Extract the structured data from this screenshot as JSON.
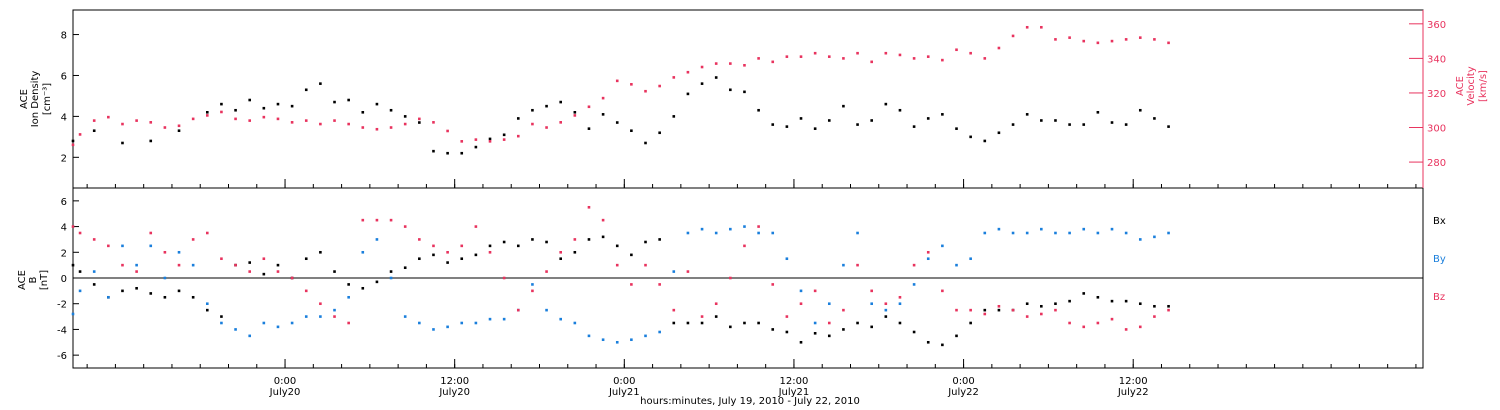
{
  "colors": {
    "ion_density": "#000000",
    "velocity": "#e8335e",
    "bx": "#000000",
    "by": "#1a7fdc",
    "bz": "#e8335e",
    "axis": "#000000"
  },
  "top_panel": {
    "left_label": [
      "ACE",
      "Ion Density",
      "[cm⁻³]"
    ],
    "right_label": [
      "ACE",
      "Velocity",
      "[km/s]"
    ]
  },
  "bottom_panel": {
    "left_label": [
      "ACE",
      "B",
      "[nT]"
    ],
    "legend": [
      "Bx",
      "By",
      "Bz"
    ]
  },
  "x_axis": {
    "caption": "hours:minutes, July 19, 2010 - July 22, 2010",
    "ticks": [
      {
        "hour": 19.5,
        "time": "0:00",
        "day": "July20"
      },
      {
        "hour": 31.5,
        "time": "12:00",
        "day": "July20"
      },
      {
        "hour": 43.5,
        "time": "0:00",
        "day": "July21"
      },
      {
        "hour": 55.5,
        "time": "12:00",
        "day": "July21"
      },
      {
        "hour": 67.5,
        "time": "0:00",
        "day": "July22"
      },
      {
        "hour": 79.5,
        "time": "12:00",
        "day": "July22"
      }
    ]
  },
  "chart_data": [
    {
      "type": "scatter",
      "panel": "top",
      "xlim": [
        4.5,
        100
      ],
      "x_unit": "hours",
      "y_left": {
        "label": "Ion Density",
        "unit": "cm⁻³",
        "ylim": [
          0.5,
          9.2
        ],
        "ticks": [
          2,
          4,
          6,
          8
        ]
      },
      "y_right": {
        "label": "Velocity",
        "unit": "km/s",
        "ylim": [
          265,
          368
        ],
        "ticks": [
          280,
          300,
          320,
          340,
          360
        ]
      },
      "series": [
        {
          "name": "Ion Density",
          "axis": "left",
          "x": [
            4.5,
            6,
            8,
            10,
            12,
            14,
            15,
            16,
            17,
            18,
            19,
            20,
            21,
            22,
            23,
            24,
            25,
            26,
            27,
            28,
            29,
            30,
            31,
            32,
            33,
            34,
            35,
            36,
            37,
            38,
            39,
            40,
            41,
            42,
            43,
            44,
            45,
            46,
            47,
            48,
            49,
            50,
            51,
            52,
            53,
            54,
            55,
            56,
            57,
            58,
            59,
            60,
            61,
            62,
            63,
            64,
            65,
            66,
            67,
            68,
            69,
            70,
            71,
            72,
            73,
            74,
            75,
            76,
            77,
            78,
            79,
            80,
            81,
            82
          ],
          "values": [
            2.8,
            3.3,
            2.7,
            2.8,
            3.3,
            4.2,
            4.6,
            4.3,
            4.8,
            4.4,
            4.6,
            4.5,
            5.3,
            5.6,
            4.7,
            4.8,
            4.2,
            4.6,
            4.3,
            4.0,
            3.7,
            2.3,
            2.2,
            2.2,
            2.5,
            2.9,
            3.1,
            3.9,
            4.3,
            4.5,
            4.7,
            4.2,
            3.4,
            4.1,
            3.7,
            3.3,
            2.7,
            3.2,
            4.0,
            5.1,
            5.6,
            5.9,
            5.3,
            5.2,
            4.3,
            3.6,
            3.5,
            3.9,
            3.4,
            3.8,
            4.5,
            3.6,
            3.8,
            4.6,
            4.3,
            3.5,
            3.9,
            4.1,
            3.4,
            3.0,
            2.8,
            3.2,
            3.6,
            4.1,
            3.8,
            3.8,
            3.6,
            3.6,
            4.2,
            3.7,
            3.6,
            4.3,
            3.9,
            3.5
          ]
        },
        {
          "name": "Velocity",
          "axis": "right",
          "x": [
            4.5,
            5,
            6,
            7,
            8,
            9,
            10,
            11,
            12,
            13,
            14,
            15,
            16,
            17,
            18,
            19,
            20,
            21,
            22,
            23,
            24,
            25,
            26,
            27,
            28,
            29,
            30,
            31,
            32,
            33,
            34,
            35,
            36,
            37,
            38,
            39,
            40,
            41,
            42,
            43,
            44,
            45,
            46,
            47,
            48,
            49,
            50,
            51,
            52,
            53,
            54,
            55,
            56,
            57,
            58,
            59,
            60,
            61,
            62,
            63,
            64,
            65,
            66,
            67,
            68,
            69,
            70,
            71,
            72,
            73,
            74,
            75,
            76,
            77,
            78,
            79,
            80,
            81,
            82
          ],
          "values": [
            290,
            296,
            304,
            306,
            302,
            304,
            303,
            300,
            301,
            305,
            307,
            309,
            305,
            304,
            306,
            305,
            303,
            304,
            302,
            304,
            302,
            300,
            299,
            300,
            302,
            305,
            303,
            298,
            292,
            293,
            292,
            293,
            295,
            302,
            300,
            303,
            307,
            312,
            317,
            327,
            325,
            321,
            324,
            329,
            332,
            335,
            337,
            337,
            336,
            340,
            338,
            341,
            341,
            343,
            341,
            340,
            343,
            338,
            343,
            342,
            340,
            341,
            339,
            345,
            343,
            340,
            346,
            353,
            358,
            358,
            351,
            352,
            350,
            349,
            350,
            351,
            352,
            351,
            349
          ]
        }
      ]
    },
    {
      "type": "scatter",
      "panel": "bottom",
      "xlim": [
        4.5,
        100
      ],
      "x_unit": "hours",
      "y": {
        "label": "B",
        "unit": "nT",
        "ylim": [
          -7,
          7
        ],
        "ticks": [
          -6,
          -4,
          -2,
          0,
          2,
          4,
          6
        ]
      },
      "series": [
        {
          "name": "Bx",
          "x": [
            4.5,
            5,
            6,
            7,
            8,
            9,
            10,
            11,
            12,
            13,
            14,
            15,
            16,
            17,
            18,
            19,
            20,
            21,
            22,
            23,
            24,
            25,
            26,
            27,
            28,
            29,
            30,
            31,
            32,
            33,
            34,
            35,
            36,
            37,
            38,
            39,
            40,
            41,
            42,
            43,
            44,
            45,
            46,
            47,
            48,
            49,
            50,
            51,
            52,
            53,
            54,
            55,
            56,
            57,
            58,
            59,
            60,
            61,
            62,
            63,
            64,
            65,
            66,
            67,
            68,
            69,
            70,
            71,
            72,
            73,
            74,
            75,
            76,
            77,
            78,
            79,
            80,
            81,
            82
          ],
          "values": [
            1.0,
            0.5,
            -0.5,
            -1.5,
            -1.0,
            -0.8,
            -1.2,
            -1.5,
            -1.0,
            -1.5,
            -2.5,
            -3.0,
            1.0,
            1.2,
            0.3,
            1.0,
            0.0,
            1.5,
            2.0,
            0.5,
            -0.5,
            -0.8,
            -0.3,
            0.5,
            0.8,
            1.5,
            1.8,
            1.2,
            1.5,
            1.8,
            2.5,
            2.8,
            2.5,
            3.0,
            2.8,
            1.5,
            2.0,
            3.0,
            3.2,
            2.5,
            1.8,
            2.8,
            3.0,
            -3.5,
            -3.5,
            -3.5,
            -3.0,
            -3.8,
            -3.5,
            -3.5,
            -4.0,
            -4.2,
            -5.0,
            -4.3,
            -4.5,
            -4.0,
            -3.5,
            -3.8,
            -3.0,
            -3.5,
            -4.2,
            -5.0,
            -5.2,
            -4.5,
            -3.5,
            -2.5,
            -2.5,
            -2.5,
            -2.0,
            -2.2,
            -2.0,
            -1.8,
            -1.2,
            -1.5,
            -1.8,
            -1.8,
            -2.0,
            -2.2,
            -2.2
          ]
        },
        {
          "name": "By",
          "x": [
            4.5,
            5,
            6,
            7,
            8,
            9,
            10,
            11,
            12,
            13,
            14,
            15,
            16,
            17,
            18,
            19,
            20,
            21,
            22,
            23,
            24,
            25,
            26,
            27,
            28,
            29,
            30,
            31,
            32,
            33,
            34,
            35,
            36,
            37,
            38,
            39,
            40,
            41,
            42,
            43,
            44,
            45,
            46,
            47,
            48,
            49,
            50,
            51,
            52,
            53,
            54,
            55,
            56,
            57,
            58,
            59,
            60,
            61,
            62,
            63,
            64,
            65,
            66,
            67,
            68,
            69,
            70,
            71,
            72,
            73,
            74,
            75,
            76,
            77,
            78,
            79,
            80,
            81,
            82
          ],
          "values": [
            -2.8,
            -1.0,
            0.5,
            -1.5,
            2.5,
            1.0,
            2.5,
            0.0,
            2.0,
            1.0,
            -2.0,
            -3.5,
            -4.0,
            -4.5,
            -3.5,
            -3.8,
            -3.5,
            -3.0,
            -3.0,
            -2.5,
            -1.5,
            2.0,
            3.0,
            0.0,
            -3.0,
            -3.5,
            -4.0,
            -3.8,
            -3.5,
            -3.5,
            -3.2,
            -3.2,
            -2.5,
            -0.5,
            -2.5,
            -3.2,
            -3.5,
            -4.5,
            -4.8,
            -5.0,
            -4.8,
            -4.5,
            -4.2,
            0.5,
            3.5,
            3.8,
            3.5,
            3.8,
            4.0,
            3.5,
            3.5,
            1.5,
            -1.0,
            -3.5,
            -2.0,
            1.0,
            3.5,
            -2.0,
            -2.5,
            -2.0,
            -0.5,
            1.5,
            2.5,
            1.0,
            1.5,
            3.5,
            3.8,
            3.5,
            3.5,
            3.8,
            3.5,
            3.5,
            3.8,
            3.5,
            3.8,
            3.5,
            3.0,
            3.2,
            3.5
          ]
        },
        {
          "name": "Bz",
          "x": [
            4.5,
            5,
            6,
            7,
            8,
            9,
            10,
            11,
            12,
            13,
            14,
            15,
            16,
            17,
            18,
            19,
            20,
            21,
            22,
            23,
            24,
            25,
            26,
            27,
            28,
            29,
            30,
            31,
            32,
            33,
            34,
            35,
            36,
            37,
            38,
            39,
            40,
            41,
            42,
            43,
            44,
            45,
            46,
            47,
            48,
            49,
            50,
            51,
            52,
            53,
            54,
            55,
            56,
            57,
            58,
            59,
            60,
            61,
            62,
            63,
            64,
            65,
            66,
            67,
            68,
            69,
            70,
            71,
            72,
            73,
            74,
            75,
            76,
            77,
            78,
            79,
            80,
            81,
            82
          ],
          "values": [
            4.0,
            3.5,
            3.0,
            2.5,
            1.0,
            0.5,
            3.5,
            2.0,
            1.0,
            3.0,
            3.5,
            1.5,
            1.0,
            0.5,
            1.5,
            0.5,
            0.0,
            -1.0,
            -2.0,
            -3.0,
            -3.5,
            4.5,
            4.5,
            4.5,
            4.0,
            3.0,
            2.5,
            2.0,
            2.5,
            4.0,
            2.0,
            0.0,
            -2.5,
            -1.0,
            0.5,
            2.0,
            3.0,
            5.5,
            4.5,
            1.0,
            -0.5,
            1.0,
            -0.5,
            -2.5,
            0.5,
            -3.0,
            -2.0,
            0.0,
            2.5,
            4.0,
            -0.5,
            -3.0,
            -2.0,
            -1.0,
            -3.5,
            -2.5,
            1.0,
            -1.0,
            -2.0,
            -1.5,
            1.0,
            2.0,
            -1.0,
            -2.5,
            -2.5,
            -2.8,
            -2.2,
            -2.5,
            -3.0,
            -2.8,
            -2.5,
            -3.5,
            -3.8,
            -3.5,
            -3.2,
            -4.0,
            -3.8,
            -3.0,
            -2.5
          ]
        }
      ]
    }
  ]
}
